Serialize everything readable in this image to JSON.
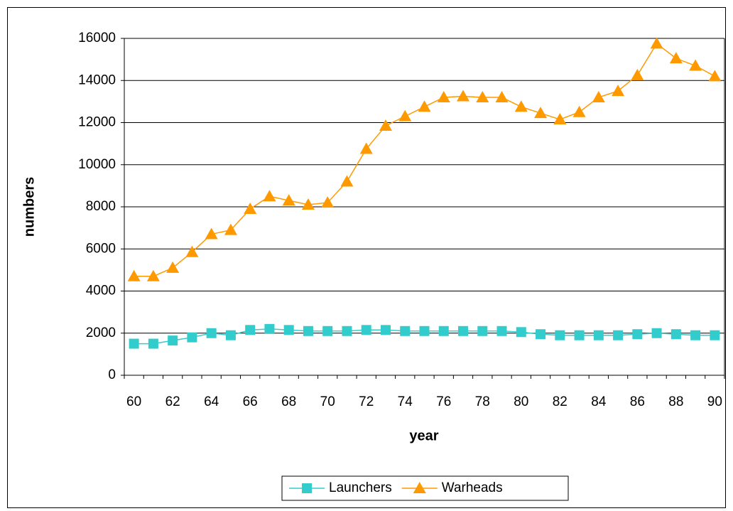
{
  "chart_data": {
    "type": "line",
    "x_label": "year",
    "y_label": "numbers",
    "categories": [
      "60",
      null,
      "62",
      null,
      "64",
      null,
      "66",
      null,
      "68",
      null,
      "70",
      null,
      "72",
      null,
      "74",
      null,
      "76",
      null,
      "78",
      null,
      "80",
      null,
      "82",
      null,
      "84",
      null,
      "86",
      null,
      "88",
      null,
      "90"
    ],
    "series": [
      {
        "name": "Launchers",
        "color": "#33cccc",
        "marker": "square",
        "values": [
          1500,
          1500,
          1650,
          1800,
          2000,
          1900,
          2150,
          2200,
          2150,
          2100,
          2100,
          2100,
          2150,
          2150,
          2100,
          2100,
          2100,
          2100,
          2100,
          2100,
          2050,
          1950,
          1900,
          1900,
          1900,
          1900,
          1950,
          2000,
          1950,
          1900,
          1900
        ]
      },
      {
        "name": "Warheads",
        "color": "#ff9900",
        "marker": "triangle",
        "values": [
          4700,
          4700,
          5100,
          5850,
          6700,
          6900,
          7900,
          8500,
          8300,
          8100,
          8200,
          9200,
          10750,
          11850,
          12300,
          12750,
          13200,
          13250,
          13200,
          13200,
          12750,
          12450,
          12150,
          12500,
          13200,
          13500,
          14250,
          15750,
          15050,
          14700,
          14200
        ]
      }
    ],
    "ylim": [
      0,
      16000
    ],
    "yticks": [
      0,
      2000,
      4000,
      6000,
      8000,
      10000,
      12000,
      14000,
      16000
    ],
    "grid": true,
    "legend": "bottom"
  }
}
